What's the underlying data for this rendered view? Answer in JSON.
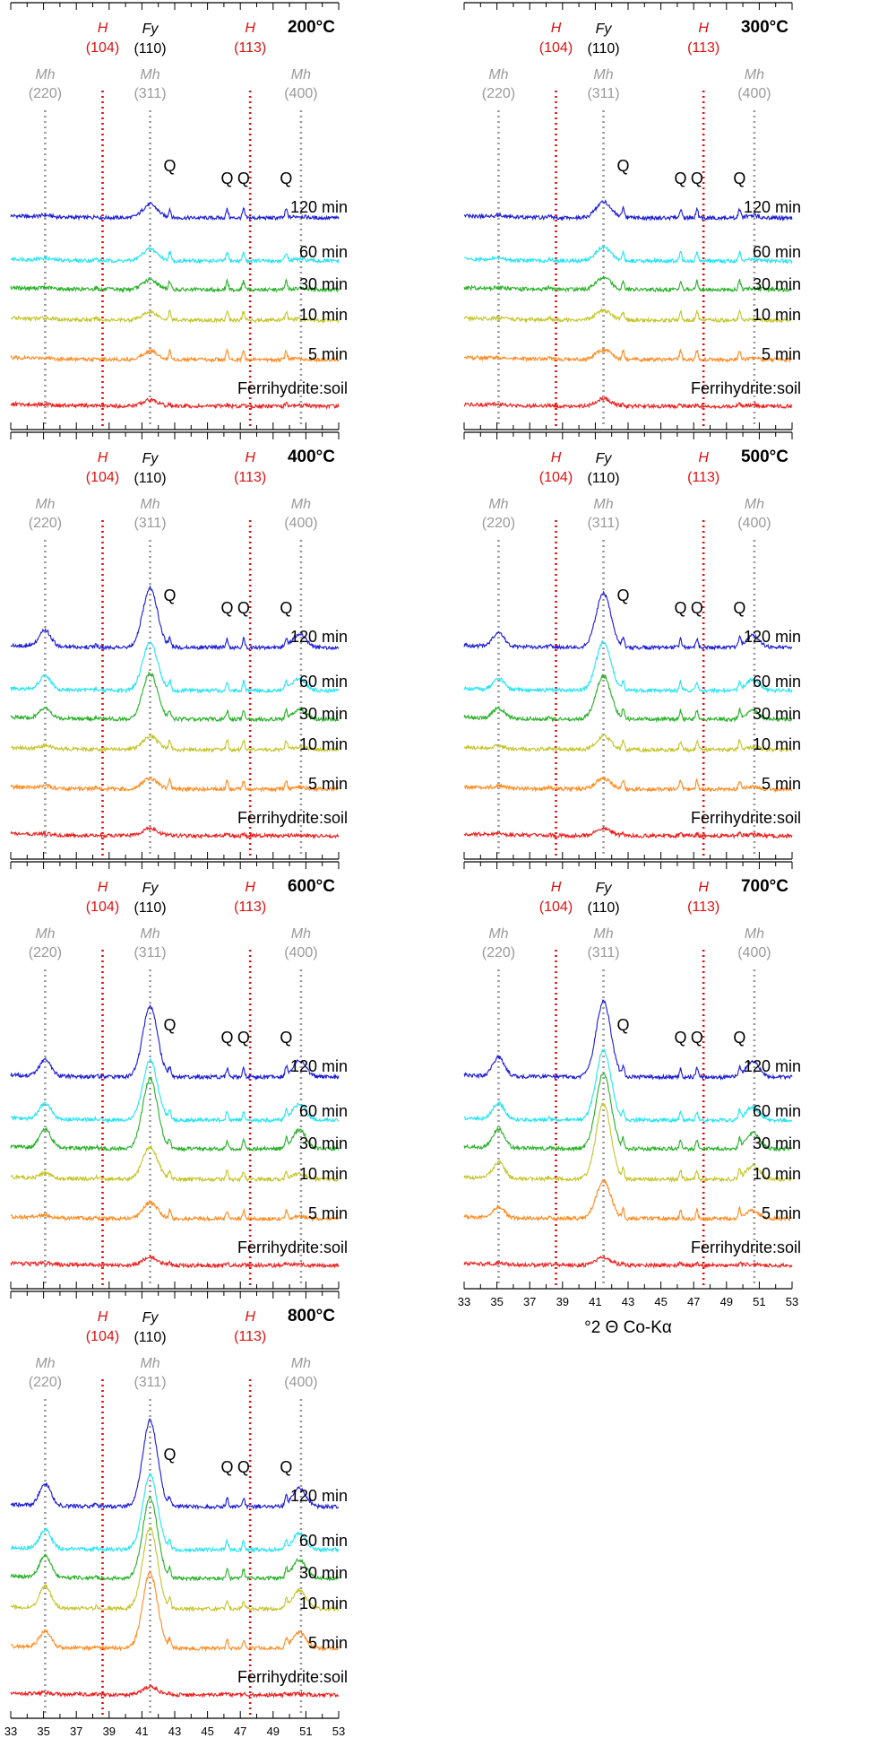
{
  "chart_data": {
    "type": "line",
    "x_range": [
      33,
      53
    ],
    "x_ticks": [
      33,
      35,
      37,
      39,
      41,
      43,
      45,
      47,
      49,
      51,
      53
    ],
    "x_label": "°2 Θ Co-Kα",
    "series_names": [
      "120 min",
      "60 min",
      "30 min",
      "10 min",
      "5 min",
      "Ferrihydrite:soil"
    ],
    "series_colors": [
      "#1a1ad6",
      "#22e3f2",
      "#27b027",
      "#c4c42a",
      "#ff8a1f",
      "#ee1c1c"
    ],
    "reference_lines": [
      {
        "phase": "Mh",
        "hkl": "(220)",
        "x": 35.1,
        "color": "#9a9a9a"
      },
      {
        "phase": "H",
        "hkl": "(104)",
        "x": 38.6,
        "color": "#dd1111"
      },
      {
        "phase": "Mh",
        "hkl": "(311)",
        "x": 41.5,
        "color": "#9a9a9a",
        "extra_phase": "Fy",
        "extra_hkl": "(110)"
      },
      {
        "phase": "H",
        "hkl": "(113)",
        "x": 47.6,
        "color": "#dd1111"
      },
      {
        "phase": "Mh",
        "hkl": "(400)",
        "x": 50.7,
        "color": "#9a9a9a"
      }
    ],
    "quartz_label": "Q",
    "quartz_peaks": [
      42.7,
      46.2,
      47.2,
      49.8
    ],
    "panels": [
      {
        "title": "200°C",
        "peak_311": [
          0.25,
          0.22,
          0.18,
          0.15,
          0.16,
          0.12
        ],
        "peak_220": [
          0.03,
          0.03,
          0.02,
          0.02,
          0.02,
          0.02
        ],
        "peak_400": [
          0.03,
          0.03,
          0.02,
          0.02,
          0.02,
          0.02
        ]
      },
      {
        "title": "300°C",
        "peak_311": [
          0.3,
          0.25,
          0.22,
          0.18,
          0.18,
          0.14
        ],
        "peak_220": [
          0.03,
          0.03,
          0.02,
          0.02,
          0.02,
          0.02
        ],
        "peak_400": [
          0.04,
          0.03,
          0.03,
          0.02,
          0.02,
          0.02
        ]
      },
      {
        "title": "400°C",
        "peak_311": [
          1.1,
          0.9,
          0.85,
          0.25,
          0.2,
          0.14
        ],
        "peak_220": [
          0.3,
          0.25,
          0.2,
          0.05,
          0.04,
          0.02
        ],
        "peak_400": [
          0.25,
          0.22,
          0.18,
          0.05,
          0.04,
          0.02
        ]
      },
      {
        "title": "500°C",
        "peak_311": [
          1.0,
          0.9,
          0.8,
          0.25,
          0.2,
          0.14
        ],
        "peak_220": [
          0.25,
          0.2,
          0.18,
          0.05,
          0.04,
          0.02
        ],
        "peak_400": [
          0.22,
          0.2,
          0.15,
          0.05,
          0.04,
          0.02
        ]
      },
      {
        "title": "600°C",
        "peak_311": [
          1.3,
          1.1,
          1.3,
          0.6,
          0.3,
          0.15
        ],
        "peak_220": [
          0.3,
          0.3,
          0.35,
          0.1,
          0.05,
          0.02
        ],
        "peak_400": [
          0.3,
          0.3,
          0.35,
          0.1,
          0.05,
          0.02
        ]
      },
      {
        "title": "700°C",
        "peak_311": [
          1.4,
          1.3,
          1.4,
          1.4,
          0.7,
          0.15
        ],
        "peak_220": [
          0.35,
          0.3,
          0.35,
          0.3,
          0.2,
          0.02
        ],
        "peak_400": [
          0.3,
          0.25,
          0.3,
          0.25,
          0.15,
          0.02
        ]
      },
      {
        "title": "800°C",
        "peak_311": [
          1.6,
          1.4,
          1.5,
          1.5,
          1.4,
          0.15
        ],
        "peak_220": [
          0.4,
          0.35,
          0.4,
          0.4,
          0.3,
          0.02
        ],
        "peak_400": [
          0.35,
          0.3,
          0.35,
          0.35,
          0.3,
          0.02
        ]
      }
    ]
  }
}
